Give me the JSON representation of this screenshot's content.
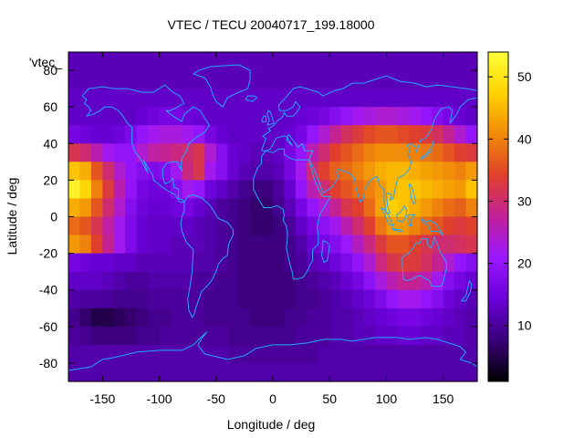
{
  "chart_data": {
    "type": "heatmap",
    "title": "VTEC / TECU 20040717_199.18000",
    "xlabel": "Longitude / deg",
    "ylabel": "Latitude / deg",
    "xlim": [
      -180,
      180
    ],
    "ylim": [
      -90,
      90
    ],
    "x_ticks": [
      -150,
      -100,
      -50,
      0,
      50,
      100,
      150
    ],
    "y_ticks": [
      -80,
      -60,
      -40,
      -20,
      0,
      20,
      40,
      60,
      80
    ],
    "colorbar": {
      "min": 1,
      "max": 54,
      "ticks": [
        10,
        20,
        30,
        40,
        50
      ]
    },
    "legend_label": "'vtec_",
    "colormap": [
      "#000000",
      "#3a007a",
      "#6a00d8",
      "#9a18ff",
      "#c2209a",
      "#e0402a",
      "#f08a08",
      "#ffd200",
      "#ffff3a"
    ],
    "coastline_color": "#22a8ff",
    "lat_grid": [
      85,
      75,
      65,
      55,
      45,
      35,
      25,
      15,
      5,
      -5,
      -15,
      -25,
      -35,
      -45,
      -55,
      -65,
      -75,
      -85
    ],
    "lon_grid": [
      -175,
      -165,
      -155,
      -145,
      -135,
      -125,
      -115,
      -105,
      -95,
      -85,
      -75,
      -65,
      -55,
      -45,
      -35,
      -25,
      -15,
      -5,
      5,
      15,
      25,
      35,
      45,
      55,
      65,
      75,
      85,
      95,
      105,
      115,
      125,
      135,
      145,
      155,
      165,
      175
    ],
    "vtec": [
      [
        12,
        12,
        12,
        12,
        12,
        12,
        12,
        12,
        12,
        12,
        12,
        12,
        12,
        12,
        12,
        12,
        12,
        12,
        12,
        12,
        12,
        12,
        12,
        12,
        12,
        12,
        12,
        12,
        12,
        12,
        12,
        12,
        12,
        12,
        12,
        12
      ],
      [
        12,
        12,
        12,
        12,
        12,
        12,
        12,
        12,
        12,
        12,
        12,
        12,
        12,
        12,
        12,
        12,
        12,
        12,
        12,
        12,
        12,
        12,
        12,
        12,
        12,
        12,
        12,
        12,
        12,
        12,
        12,
        12,
        12,
        12,
        12,
        12
      ],
      [
        13,
        13,
        13,
        13,
        13,
        13,
        13,
        13,
        13,
        13,
        13,
        13,
        13,
        13,
        13,
        13,
        13,
        13,
        13,
        13,
        13,
        13,
        13,
        13,
        13,
        13,
        13,
        13,
        13,
        13,
        13,
        13,
        13,
        13,
        13,
        13
      ],
      [
        13,
        13,
        13,
        13,
        13,
        13,
        14,
        15,
        16,
        16,
        15,
        14,
        13,
        13,
        13,
        13,
        13,
        13,
        13,
        13,
        14,
        15,
        16,
        18,
        20,
        22,
        23,
        24,
        24,
        23,
        22,
        20,
        18,
        16,
        14,
        13
      ],
      [
        16,
        15,
        14,
        14,
        15,
        17,
        20,
        22,
        23,
        23,
        22,
        20,
        16,
        14,
        13,
        13,
        13,
        13,
        13,
        14,
        16,
        20,
        24,
        28,
        31,
        33,
        35,
        36,
        36,
        35,
        34,
        33,
        31,
        28,
        24,
        20
      ],
      [
        32,
        30,
        26,
        22,
        20,
        20,
        24,
        27,
        28,
        29,
        30,
        32,
        24,
        18,
        14,
        13,
        12,
        12,
        13,
        16,
        20,
        26,
        30,
        34,
        36,
        38,
        40,
        41,
        41,
        41,
        40,
        39,
        38,
        36,
        34,
        33
      ],
      [
        46,
        44,
        36,
        30,
        24,
        20,
        18,
        17,
        18,
        22,
        29,
        32,
        22,
        18,
        14,
        12,
        11,
        11,
        12,
        16,
        22,
        30,
        34,
        37,
        38,
        40,
        42,
        44,
        45,
        45,
        44,
        43,
        42,
        41,
        40,
        42
      ],
      [
        52,
        48,
        40,
        33,
        26,
        20,
        16,
        15,
        15,
        18,
        22,
        20,
        15,
        13,
        11,
        9,
        8,
        8,
        10,
        14,
        20,
        26,
        30,
        34,
        36,
        38,
        40,
        42,
        45,
        46,
        46,
        45,
        44,
        43,
        42,
        46
      ],
      [
        44,
        42,
        36,
        30,
        24,
        18,
        15,
        14,
        14,
        15,
        16,
        14,
        12,
        10,
        9,
        8,
        7,
        7,
        9,
        12,
        16,
        20,
        24,
        28,
        32,
        34,
        38,
        43,
        47,
        46,
        44,
        42,
        40,
        38,
        37,
        40
      ],
      [
        38,
        36,
        32,
        27,
        22,
        17,
        14,
        13,
        13,
        13,
        13,
        12,
        11,
        10,
        9,
        8,
        7,
        7,
        8,
        10,
        13,
        16,
        19,
        22,
        26,
        30,
        34,
        39,
        42,
        42,
        40,
        38,
        36,
        34,
        33,
        34
      ],
      [
        42,
        40,
        34,
        28,
        22,
        17,
        14,
        13,
        13,
        12,
        12,
        12,
        11,
        10,
        9,
        8,
        8,
        8,
        8,
        9,
        11,
        14,
        16,
        18,
        21,
        25,
        29,
        33,
        36,
        36,
        34,
        32,
        30,
        30,
        31,
        32
      ],
      [
        16,
        15,
        14,
        14,
        13,
        13,
        12,
        12,
        12,
        12,
        12,
        11,
        11,
        10,
        9,
        8,
        8,
        8,
        8,
        9,
        10,
        12,
        13,
        15,
        17,
        20,
        24,
        29,
        32,
        33,
        33,
        31,
        28,
        24,
        20,
        18
      ],
      [
        13,
        13,
        13,
        12,
        11,
        10,
        10,
        11,
        11,
        11,
        11,
        10,
        10,
        9,
        9,
        8,
        8,
        8,
        8,
        8,
        9,
        10,
        11,
        12,
        14,
        16,
        19,
        23,
        26,
        28,
        28,
        26,
        22,
        18,
        16,
        14
      ],
      [
        11,
        10,
        10,
        10,
        9,
        9,
        9,
        10,
        10,
        10,
        10,
        10,
        9,
        9,
        9,
        8,
        8,
        8,
        8,
        8,
        9,
        9,
        10,
        11,
        12,
        13,
        15,
        17,
        20,
        22,
        22,
        20,
        18,
        15,
        13,
        12
      ],
      [
        9,
        7,
        5,
        5,
        6,
        7,
        8,
        9,
        9,
        10,
        10,
        10,
        9,
        9,
        9,
        9,
        8,
        8,
        8,
        9,
        9,
        10,
        10,
        11,
        11,
        12,
        13,
        14,
        15,
        16,
        16,
        15,
        14,
        13,
        12,
        11
      ],
      [
        10,
        9,
        8,
        8,
        8,
        8,
        9,
        9,
        10,
        10,
        10,
        10,
        10,
        10,
        9,
        9,
        9,
        9,
        9,
        9,
        10,
        10,
        10,
        11,
        11,
        12,
        12,
        13,
        13,
        14,
        14,
        13,
        13,
        12,
        12,
        11
      ],
      [
        11,
        11,
        11,
        11,
        11,
        11,
        11,
        11,
        11,
        11,
        11,
        11,
        11,
        11,
        10,
        10,
        10,
        10,
        10,
        10,
        10,
        10,
        11,
        11,
        11,
        11,
        11,
        11,
        11,
        11,
        11,
        11,
        11,
        11,
        11,
        11
      ],
      [
        11,
        11,
        11,
        11,
        11,
        11,
        11,
        11,
        11,
        11,
        11,
        11,
        11,
        11,
        11,
        11,
        11,
        11,
        11,
        11,
        11,
        11,
        11,
        11,
        11,
        11,
        11,
        11,
        11,
        11,
        11,
        11,
        11,
        11,
        11,
        11
      ]
    ]
  }
}
